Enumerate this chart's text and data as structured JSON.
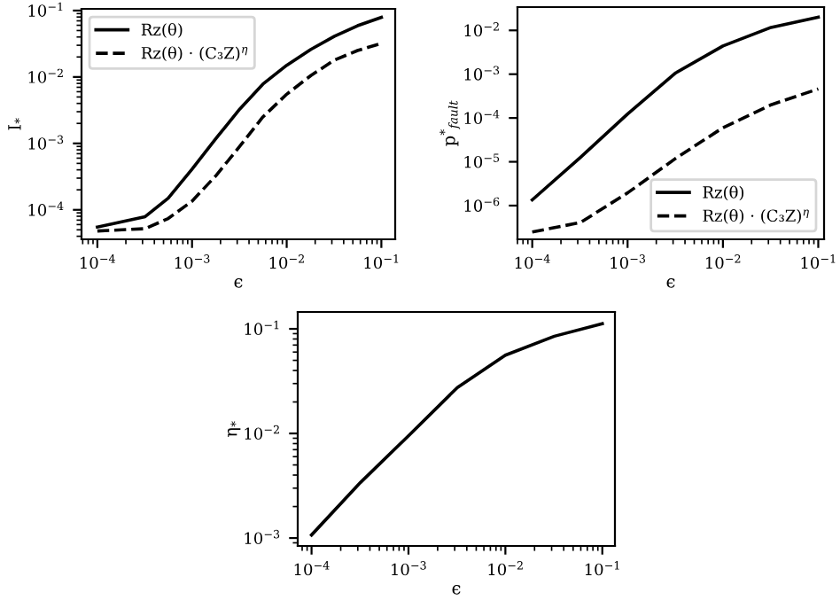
{
  "chart_data": [
    {
      "type": "line",
      "xlabel": "ϵ",
      "ylabel": "I$_{*}$",
      "log": "xy",
      "grid": false,
      "legend": "top left",
      "xlim": [
        6.8e-05,
        0.14
      ],
      "ylim": [
        3.6e-05,
        0.106
      ],
      "xticks": [
        {
          "value": 0.0001,
          "label": "10$^{−4}$"
        },
        {
          "value": 0.001,
          "label": "10$^{−3}$"
        },
        {
          "value": 0.01,
          "label": "10$^{−2}$"
        },
        {
          "value": 0.1,
          "label": "10$^{−1}$"
        }
      ],
      "yticks": [
        {
          "value": 0.0001,
          "label": "10$^{−4}$"
        },
        {
          "value": 0.001,
          "label": "10$^{−3}$"
        },
        {
          "value": 0.01,
          "label": "10$^{−2}$"
        },
        {
          "value": 0.1,
          "label": "10$^{−1}$"
        }
      ],
      "series": [
        {
          "name": "Rz(θ)",
          "color": "#000000",
          "line_style": "solid",
          "x": [
            0.0001,
            0.00032,
            0.00056,
            0.001,
            0.0018,
            0.0032,
            0.0056,
            0.01,
            0.018,
            0.032,
            0.056,
            0.1
          ],
          "values": [
            5.5e-05,
            7.9e-05,
            0.00015,
            0.00041,
            0.0012,
            0.0033,
            0.0078,
            0.015,
            0.026,
            0.041,
            0.059,
            0.079
          ]
        },
        {
          "name": "Rz(θ) · (C₃Z)$^{η}$",
          "color": "#000000",
          "line_style": "dashed",
          "x": [
            0.0001,
            0.00032,
            0.00056,
            0.001,
            0.0018,
            0.0032,
            0.0056,
            0.01,
            0.018,
            0.032,
            0.056,
            0.1
          ],
          "values": [
            4.8e-05,
            5.2e-05,
            7.4e-05,
            0.000135,
            0.00033,
            0.00091,
            0.0025,
            0.0055,
            0.0105,
            0.018,
            0.025,
            0.032
          ]
        }
      ]
    },
    {
      "type": "line",
      "xlabel": "ϵ",
      "ylabel": "p$^{*}$$_{fault}$",
      "log": "xy",
      "grid": false,
      "legend": "bottom right",
      "xlim": [
        7e-05,
        0.115
      ],
      "ylim": [
        1.7e-07,
        0.034
      ],
      "xticks": [
        {
          "value": 0.0001,
          "label": "10$^{−4}$"
        },
        {
          "value": 0.001,
          "label": "10$^{−3}$"
        },
        {
          "value": 0.01,
          "label": "10$^{−2}$"
        },
        {
          "value": 0.1,
          "label": "10$^{−1}$"
        }
      ],
      "yticks": [
        {
          "value": 1e-06,
          "label": "10$^{−6}$"
        },
        {
          "value": 1e-05,
          "label": "10$^{−5}$"
        },
        {
          "value": 0.0001,
          "label": "10$^{−4}$"
        },
        {
          "value": 0.001,
          "label": "10$^{−3}$"
        },
        {
          "value": 0.01,
          "label": "10$^{−2}$"
        }
      ],
      "series": [
        {
          "name": "Rz(θ)",
          "color": "#000000",
          "line_style": "solid",
          "x": [
            0.0001,
            0.00032,
            0.001,
            0.0032,
            0.01,
            0.032,
            0.1
          ],
          "values": [
            1.35e-06,
            1.26e-05,
            0.000123,
            0.00107,
            0.0044,
            0.0117,
            0.02
          ]
        },
        {
          "name": "Rz(θ) · (C₃Z)$^{η}$",
          "color": "#000000",
          "line_style": "dashed",
          "x": [
            0.0001,
            0.00032,
            0.001,
            0.0032,
            0.01,
            0.032,
            0.1
          ],
          "values": [
            2.5e-07,
            4.1e-07,
            1.95e-06,
            1.2e-05,
            6e-05,
            0.0002,
            0.00046
          ]
        }
      ]
    },
    {
      "type": "line",
      "xlabel": "ϵ",
      "ylabel": "η$_{*}$",
      "log": "xy",
      "grid": false,
      "xlim": [
        7.2e-05,
        0.135
      ],
      "ylim": [
        0.00084,
        0.145
      ],
      "xticks": [
        {
          "value": 0.0001,
          "label": "10$^{−4}$"
        },
        {
          "value": 0.001,
          "label": "10$^{−3}$"
        },
        {
          "value": 0.01,
          "label": "10$^{−2}$"
        },
        {
          "value": 0.1,
          "label": "10$^{−1}$"
        }
      ],
      "yticks": [
        {
          "value": 0.001,
          "label": "10$^{−3}$"
        },
        {
          "value": 0.01,
          "label": "10$^{−2}$"
        },
        {
          "value": 0.1,
          "label": "10$^{−1}$"
        }
      ],
      "series": [
        {
          "color": "#000000",
          "line_style": "solid",
          "x": [
            0.0001,
            0.00032,
            0.001,
            0.0032,
            0.01,
            0.032,
            0.1
          ],
          "values": [
            0.00107,
            0.0034,
            0.0095,
            0.0275,
            0.056,
            0.085,
            0.112
          ]
        }
      ]
    }
  ]
}
